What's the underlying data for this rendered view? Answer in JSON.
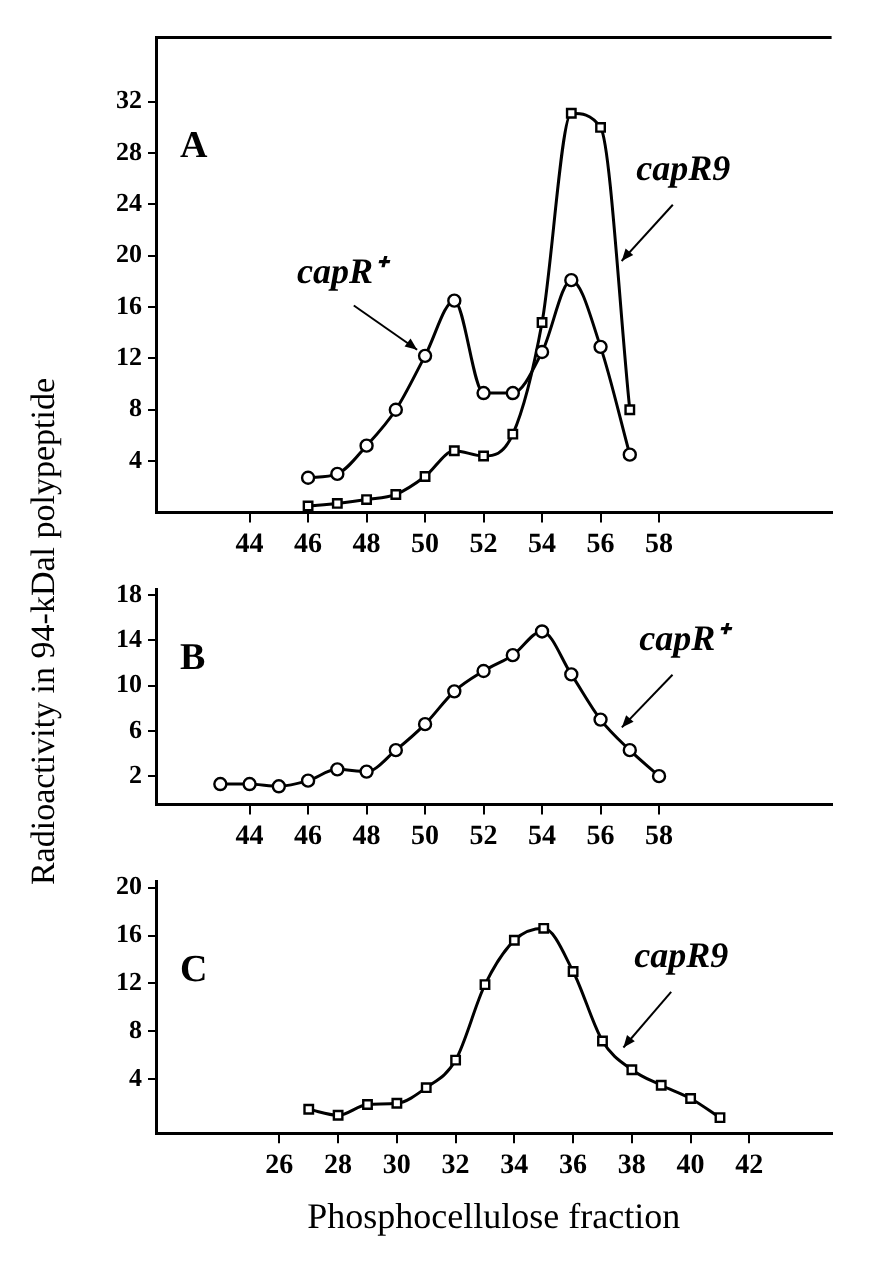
{
  "chart_data": [
    {
      "type": "line",
      "annotations": [
        "A"
      ],
      "xlim": [
        40.8,
        63.9
      ],
      "xticks": [
        44,
        46,
        48,
        50,
        52,
        54,
        56,
        58
      ],
      "ylim": [
        0,
        37
      ],
      "yticks": [
        4,
        8,
        12,
        16,
        20,
        24,
        28,
        32
      ],
      "grid": false,
      "legend": false,
      "line_style": "solid",
      "series": [
        {
          "name": "capR⁺",
          "color": "#000000",
          "marker": "circle",
          "x": [
            46,
            47,
            48,
            49,
            50,
            51,
            52,
            53,
            54,
            55,
            56,
            57
          ],
          "values": [
            2.7,
            3.0,
            5.2,
            8.0,
            12.2,
            16.5,
            9.3,
            9.3,
            12.5,
            18.1,
            12.9,
            4.5
          ]
        },
        {
          "name": "capR9",
          "color": "#000000",
          "marker": "square",
          "x": [
            46,
            47,
            48,
            49,
            50,
            51,
            52,
            53,
            54,
            55,
            56,
            57
          ],
          "values": [
            0.5,
            0.7,
            1.0,
            1.4,
            2.8,
            4.8,
            4.4,
            6.1,
            14.8,
            31.1,
            30.0,
            8.0
          ]
        }
      ]
    },
    {
      "type": "line",
      "ylabel": "Radioactivity in 94-kDal polypeptide",
      "annotations": [
        "B"
      ],
      "xlim": [
        40.8,
        63.9
      ],
      "xticks": [
        44,
        46,
        48,
        50,
        52,
        54,
        56,
        58
      ],
      "ylim": [
        -0.5,
        18.5
      ],
      "yticks": [
        2,
        6,
        10,
        14,
        18
      ],
      "grid": false,
      "legend": false,
      "line_style": "solid",
      "series": [
        {
          "name": "capR⁺",
          "color": "#000000",
          "marker": "circle",
          "x": [
            43,
            44,
            45,
            46,
            47,
            48,
            49,
            50,
            51,
            52,
            53,
            54,
            55,
            56,
            57,
            58
          ],
          "values": [
            1.3,
            1.3,
            1.1,
            1.6,
            2.6,
            2.4,
            4.3,
            6.6,
            9.5,
            11.3,
            12.7,
            14.8,
            11.0,
            7.0,
            4.3,
            2.0
          ]
        }
      ]
    },
    {
      "type": "line",
      "xlabel": "Phosphocellulose fraction",
      "annotations": [
        "C"
      ],
      "xlim": [
        21.8,
        44.8
      ],
      "xticks": [
        26,
        28,
        30,
        32,
        34,
        36,
        38,
        40,
        42
      ],
      "ylim": [
        -0.5,
        20.5
      ],
      "yticks": [
        4,
        8,
        12,
        16,
        20
      ],
      "grid": false,
      "legend": false,
      "line_style": "solid",
      "series": [
        {
          "name": "capR9",
          "color": "#000000",
          "marker": "square",
          "x": [
            27,
            28,
            29,
            30,
            31,
            32,
            33,
            34,
            35,
            36,
            37,
            38,
            39,
            40,
            41
          ],
          "values": [
            1.5,
            1.0,
            1.9,
            2.0,
            3.3,
            5.6,
            11.9,
            15.6,
            16.6,
            13.0,
            7.2,
            4.8,
            3.5,
            2.4,
            0.8
          ]
        }
      ]
    }
  ]
}
